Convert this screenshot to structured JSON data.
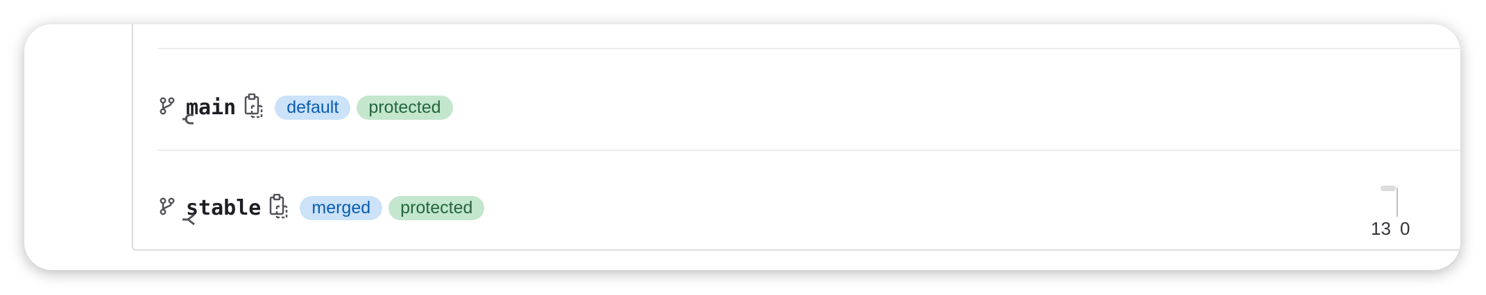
{
  "branches": [
    {
      "name": "main",
      "badges": [
        "default",
        "protected"
      ]
    },
    {
      "name": "stable",
      "badges": [
        "merged",
        "protected"
      ]
    }
  ],
  "divergence": {
    "behind": 13,
    "ahead": 0
  }
}
